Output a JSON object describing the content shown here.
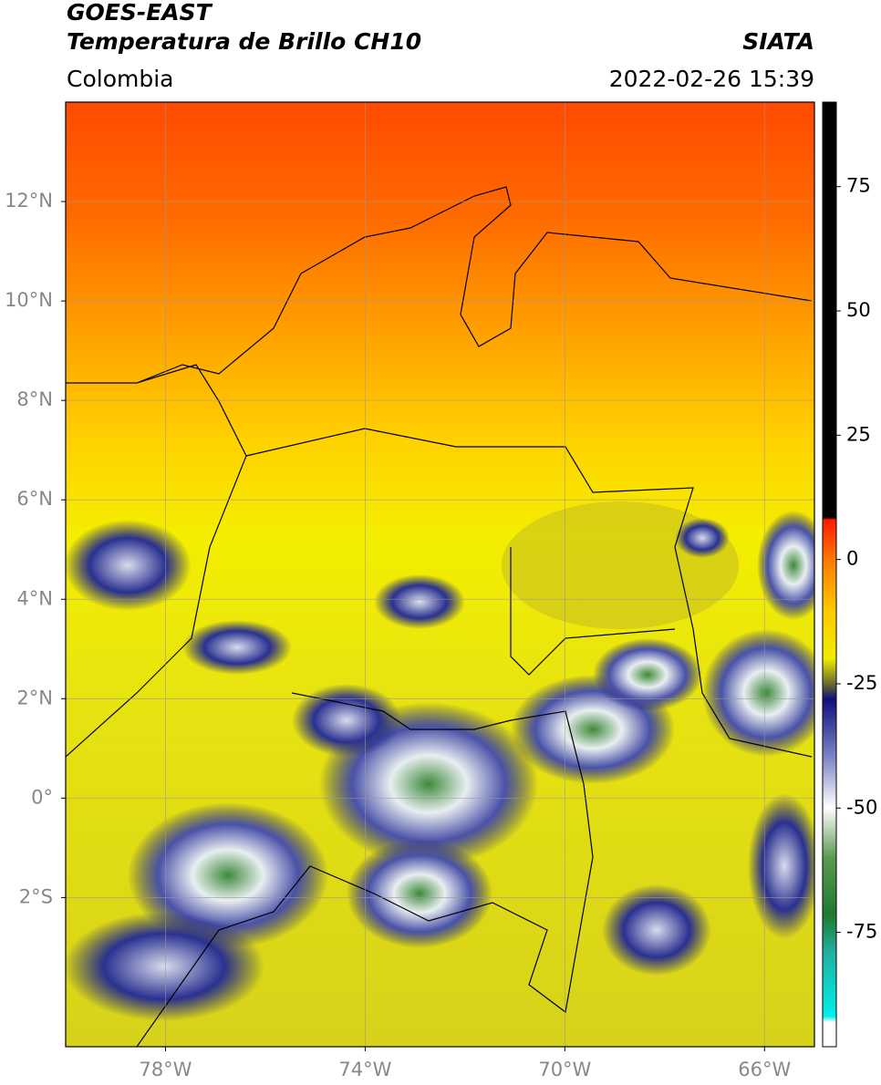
{
  "header": {
    "satellite": "GOES-EAST",
    "product": "Temperatura de Brillo CH10",
    "source": "SIATA",
    "region": "Colombia",
    "datetime": "2022-02-26 15:39"
  },
  "map": {
    "lonlim": [
      -80,
      -65
    ],
    "latlim": [
      -5,
      14
    ],
    "lonticks": [
      {
        "value": -78,
        "label": "78°W"
      },
      {
        "value": -74,
        "label": "74°W"
      },
      {
        "value": -70,
        "label": "70°W"
      },
      {
        "value": -66,
        "label": "66°W"
      }
    ],
    "latticks": [
      {
        "value": 12,
        "label": "12°N"
      },
      {
        "value": 10,
        "label": "10°N"
      },
      {
        "value": 8,
        "label": "8°N"
      },
      {
        "value": 6,
        "label": "6°N"
      },
      {
        "value": 4,
        "label": "4°N"
      },
      {
        "value": 2,
        "label": "2°N"
      },
      {
        "value": 0,
        "label": "0°"
      },
      {
        "value": -2,
        "label": "2°S"
      }
    ],
    "grid": true
  },
  "colorbar": {
    "lim": [
      -98,
      92
    ],
    "ticks": [
      75,
      50,
      25,
      0,
      -25,
      -50,
      -75
    ]
  }
}
